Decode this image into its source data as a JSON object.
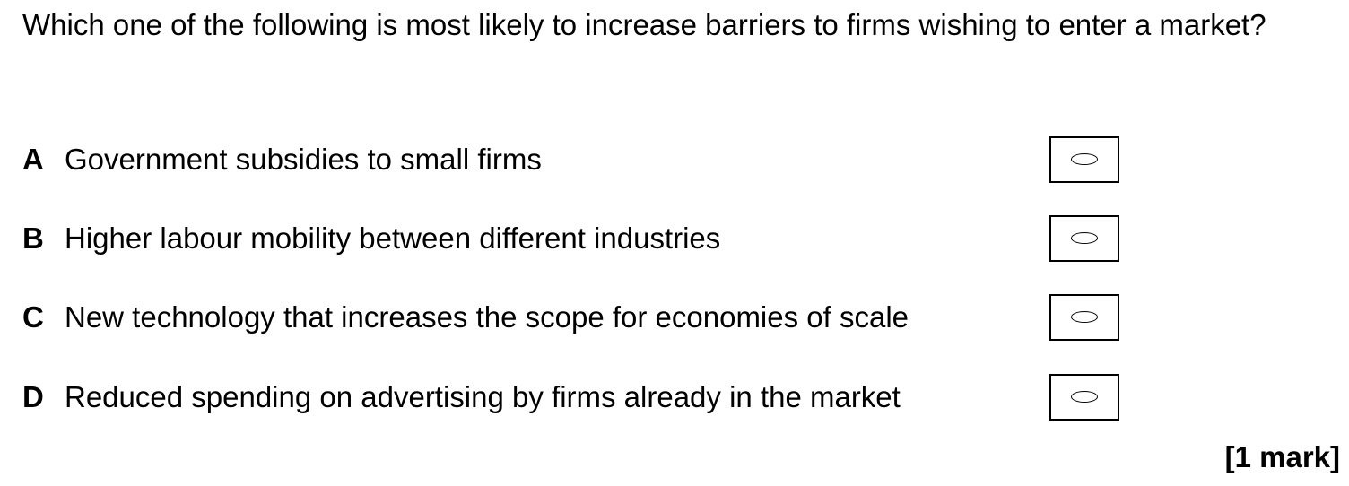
{
  "question": {
    "text": "Which one of the following is most likely to increase barriers to firms wishing to enter a market?"
  },
  "options": [
    {
      "letter": "A",
      "text": "Government subsidies to small firms"
    },
    {
      "letter": "B",
      "text": "Higher labour mobility between different industries"
    },
    {
      "letter": "C",
      "text": "New technology that increases the scope for economies of scale"
    },
    {
      "letter": "D",
      "text": "Reduced spending on advertising by firms already in the market"
    }
  ],
  "marks": "[1 mark]"
}
